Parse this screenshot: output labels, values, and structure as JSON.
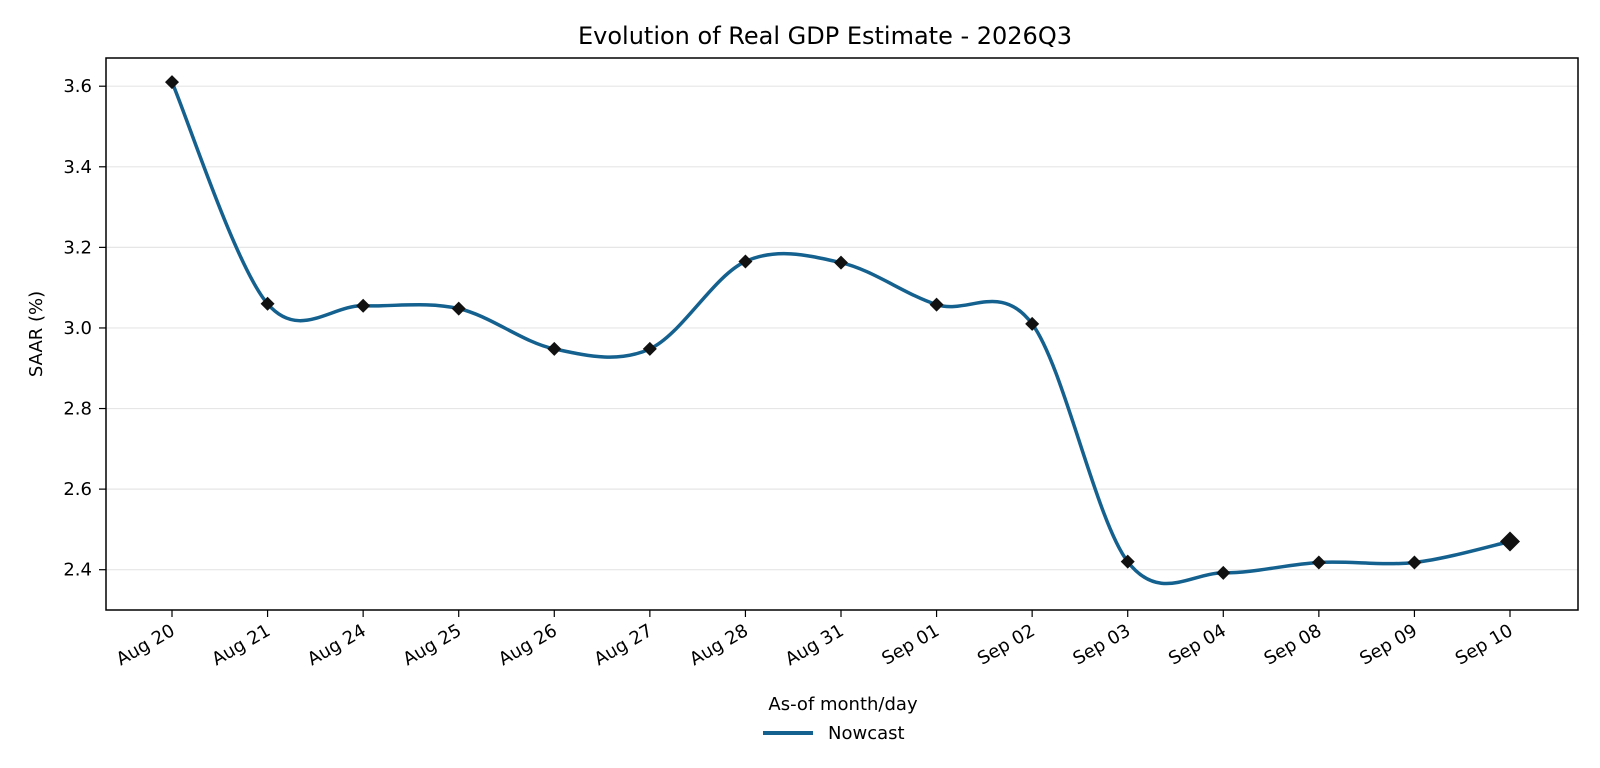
{
  "chart_data": {
    "type": "line",
    "title": "Evolution of Real GDP Estimate - 2026Q3",
    "xlabel": "As-of month/day",
    "ylabel": "SAAR (%)",
    "categories": [
      "Aug 20",
      "Aug 21",
      "Aug 24",
      "Aug 25",
      "Aug 26",
      "Aug 27",
      "Aug 28",
      "Aug 31",
      "Sep 01",
      "Sep 02",
      "Sep 03",
      "Sep 04",
      "Sep 08",
      "Sep 09",
      "Sep 10"
    ],
    "series": [
      {
        "name": "Nowcast",
        "values": [
          3.61,
          3.06,
          3.055,
          3.048,
          2.948,
          2.948,
          3.165,
          3.162,
          3.058,
          3.01,
          2.42,
          2.392,
          2.418,
          2.418,
          2.47
        ]
      }
    ],
    "ylim": [
      2.3,
      3.67
    ],
    "yticks": [
      2.4,
      2.6,
      2.8,
      3.0,
      3.2,
      3.4,
      3.6
    ],
    "grid": "horizontal",
    "legend": "bottom-center",
    "colors": {
      "line": "#14608e",
      "marker": "#111111",
      "grid": "#e6e6e6"
    }
  }
}
